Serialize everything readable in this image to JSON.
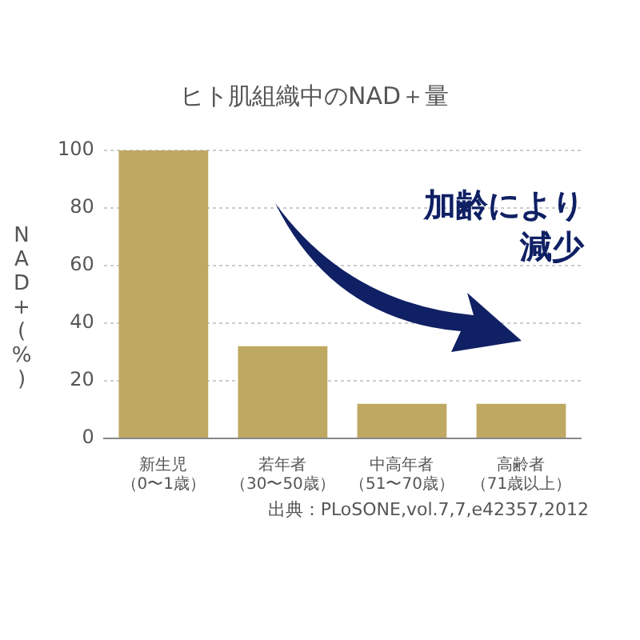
{
  "chart_data": {
    "type": "bar",
    "title": "ヒト肌組織中のNAD＋量",
    "ylabel": "NAD+(%)",
    "categories": [
      "新生児（0〜1歳）",
      "若年者（30〜50歳）",
      "中高年者（51〜70歳）",
      "高齢者（71歳以上）"
    ],
    "values": [
      100,
      32,
      12,
      12
    ],
    "color": "#bfa862",
    "ylim": [
      0,
      100
    ],
    "yticks": [
      0,
      20,
      40,
      60,
      80,
      100
    ],
    "grid": "y",
    "legend": false,
    "annotations": [
      "加齢により減少",
      "出典：PLoSONE,vol.7,7,e42357,2012"
    ]
  }
}
